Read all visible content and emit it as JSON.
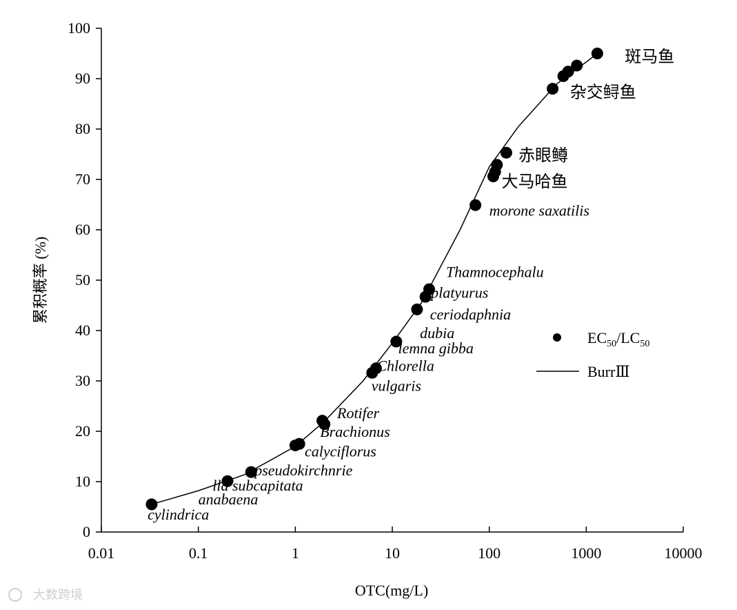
{
  "chart_data": {
    "type": "scatter",
    "xlabel": "OTC(mg/L)",
    "ylabel": "累积概率 (%)",
    "x_scale": "log",
    "xlim": [
      0.01,
      10000
    ],
    "ylim": [
      0,
      100
    ],
    "x_ticks": [
      "0.01",
      "0.1",
      "1",
      "10",
      "100",
      "1000",
      "10000"
    ],
    "y_ticks": [
      "0",
      "10",
      "20",
      "30",
      "40",
      "50",
      "60",
      "70",
      "80",
      "90",
      "100"
    ],
    "grid": false,
    "legend_position": "right",
    "series": [
      {
        "name": "EC50/LC50",
        "kind": "points",
        "x": [
          0.033,
          0.2,
          0.35,
          1.0,
          1.1,
          1.9,
          2.0,
          6.2,
          6.8,
          11,
          18,
          22,
          24,
          72,
          110,
          115,
          120,
          150,
          450,
          580,
          650,
          800,
          1300
        ],
        "y": [
          5.5,
          10.1,
          11.9,
          17.2,
          17.5,
          22.1,
          21.4,
          31.6,
          32.5,
          37.8,
          44.2,
          46.7,
          48.2,
          64.9,
          70.6,
          71.5,
          72.9,
          75.3,
          88.0,
          90.5,
          91.4,
          92.6,
          95.0
        ]
      },
      {
        "name": "BurrⅢ",
        "kind": "line",
        "x": [
          0.033,
          0.1,
          0.3,
          1,
          2,
          5,
          10,
          20,
          50,
          100,
          200,
          500,
          1000,
          1300
        ],
        "y": [
          5.5,
          8.2,
          11.4,
          17.0,
          22.0,
          30.0,
          37.5,
          45.5,
          60.0,
          72.5,
          80.5,
          89.0,
          93.3,
          95.0
        ]
      }
    ],
    "legend": {
      "points_label": {
        "base": "EC",
        "sub1": "50",
        "sep": "/LC",
        "sub2": "50"
      },
      "line_label": "BurrⅢ"
    },
    "annotations": [
      {
        "text": "cylindrica",
        "x": 0.03,
        "y": 2.5,
        "italic": true
      },
      {
        "text": "anabaena",
        "x": 0.1,
        "y": 5.5,
        "italic": true
      },
      {
        "text": "lla subcapitata",
        "x": 0.14,
        "y": 8.2,
        "italic": true
      },
      {
        "text": "pseudokirchnrie",
        "x": 0.38,
        "y": 11.2,
        "italic": true
      },
      {
        "text": "calyciflorus",
        "x": 1.25,
        "y": 15.0,
        "italic": true
      },
      {
        "text": "Brachionus",
        "x": 1.8,
        "y": 18.9,
        "italic": true
      },
      {
        "text": "Rotifer",
        "x": 2.7,
        "y": 22.6,
        "italic": true
      },
      {
        "text": "vulgaris",
        "x": 6.1,
        "y": 28.0,
        "italic": true
      },
      {
        "text": "Chlorella",
        "x": 6.9,
        "y": 32.0,
        "italic": true
      },
      {
        "text": "lemna gibba",
        "x": 11.5,
        "y": 35.5,
        "italic": true
      },
      {
        "text": "dubia",
        "x": 19.3,
        "y": 38.5,
        "italic": true
      },
      {
        "text": "ceriodaphnia",
        "x": 24.5,
        "y": 42.2,
        "italic": true
      },
      {
        "text": "splatyurus",
        "x": 21.8,
        "y": 46.5,
        "italic": true
      },
      {
        "text": "Thamnocephalu",
        "x": 35.8,
        "y": 50.6,
        "italic": true
      },
      {
        "text": "morone saxatilis",
        "x": 100,
        "y": 62.8,
        "italic": true
      },
      {
        "text": "大马哈鱼",
        "x": 134,
        "y": 68.5,
        "italic": false
      },
      {
        "text": "赤眼鳟",
        "x": 200,
        "y": 73.7,
        "italic": false
      },
      {
        "text": "杂交鲟鱼",
        "x": 680,
        "y": 86.2,
        "italic": false
      },
      {
        "text": "斑马鱼",
        "x": 2500,
        "y": 93.3,
        "italic": false
      }
    ]
  },
  "watermark": "大数跨境"
}
